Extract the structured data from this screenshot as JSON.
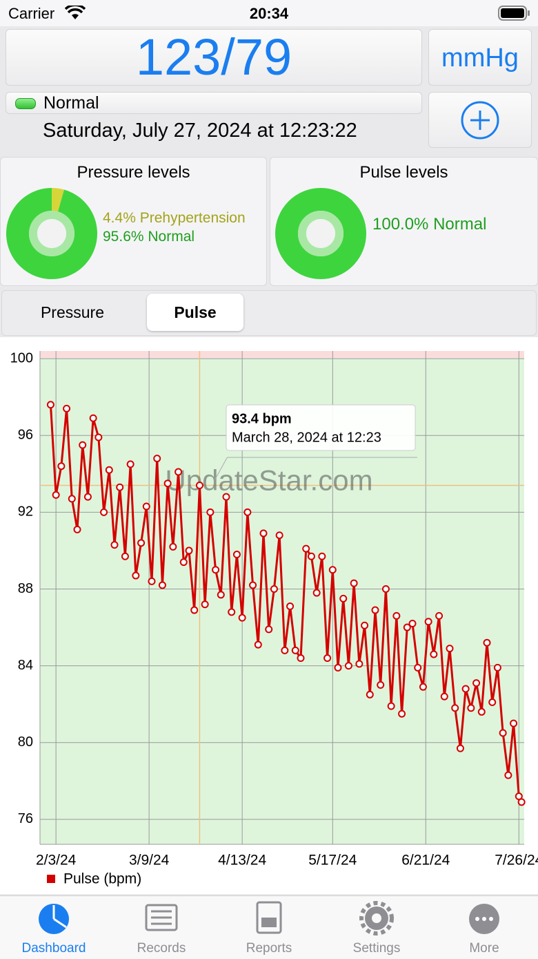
{
  "status_bar": {
    "carrier": "Carrier",
    "time": "20:34"
  },
  "reading": {
    "value": "123/79",
    "unit": "mmHg",
    "category": "Normal",
    "date": "Saturday, July 27, 2024 at 12:23:22"
  },
  "pressure_levels": {
    "type": "pie",
    "title": "Pressure levels",
    "categories": [
      "Prehypertension",
      "Normal"
    ],
    "values": [
      4.4,
      95.6
    ],
    "value_labels": [
      "4.4%",
      "95.6%"
    ],
    "colors": [
      "#d6d63a",
      "#3ed43e"
    ],
    "label_colors": [
      "#a3a31c",
      "#1f9e1f"
    ]
  },
  "pulse_levels": {
    "type": "pie",
    "title": "Pulse levels",
    "categories": [
      "Normal"
    ],
    "values": [
      100
    ],
    "value_labels": [
      "100.0%"
    ],
    "colors": [
      "#3ed43e"
    ],
    "label_colors": [
      "#1f9e1f"
    ]
  },
  "segments": [
    "Pressure",
    "Pulse"
  ],
  "selected_segment": 1,
  "watermark": "UpdateStar.com",
  "chart_data": {
    "type": "line",
    "x": [
      "2024-02-01",
      "2024-02-03",
      "2024-02-05",
      "2024-02-07",
      "2024-02-09",
      "2024-02-11",
      "2024-02-13",
      "2024-02-15",
      "2024-02-17",
      "2024-02-19",
      "2024-02-21",
      "2024-02-23",
      "2024-02-25",
      "2024-02-27",
      "2024-02-29",
      "2024-03-02",
      "2024-03-04",
      "2024-03-06",
      "2024-03-08",
      "2024-03-10",
      "2024-03-12",
      "2024-03-14",
      "2024-03-16",
      "2024-03-18",
      "2024-03-20",
      "2024-03-22",
      "2024-03-24",
      "2024-03-26",
      "2024-03-28",
      "2024-03-30",
      "2024-04-01",
      "2024-04-03",
      "2024-04-05",
      "2024-04-07",
      "2024-04-09",
      "2024-04-11",
      "2024-04-13",
      "2024-04-15",
      "2024-04-17",
      "2024-04-19",
      "2024-04-21",
      "2024-04-23",
      "2024-04-25",
      "2024-04-27",
      "2024-04-29",
      "2024-05-01",
      "2024-05-03",
      "2024-05-05",
      "2024-05-07",
      "2024-05-09",
      "2024-05-11",
      "2024-05-13",
      "2024-05-15",
      "2024-05-17",
      "2024-05-19",
      "2024-05-21",
      "2024-05-23",
      "2024-05-25",
      "2024-05-27",
      "2024-05-29",
      "2024-05-31",
      "2024-06-02",
      "2024-06-04",
      "2024-06-06",
      "2024-06-08",
      "2024-06-10",
      "2024-06-12",
      "2024-06-14",
      "2024-06-16",
      "2024-06-18",
      "2024-06-20",
      "2024-06-22",
      "2024-06-24",
      "2024-06-26",
      "2024-06-28",
      "2024-06-30",
      "2024-07-02",
      "2024-07-04",
      "2024-07-06",
      "2024-07-08",
      "2024-07-10",
      "2024-07-12",
      "2024-07-14",
      "2024-07-16",
      "2024-07-18",
      "2024-07-20",
      "2024-07-22",
      "2024-07-24",
      "2024-07-26",
      "2024-07-27"
    ],
    "series": [
      {
        "name": "Pulse (bpm)",
        "color": "#d40000",
        "values": [
          97.6,
          92.9,
          94.4,
          97.4,
          92.7,
          91.1,
          95.5,
          92.8,
          96.9,
          95.9,
          92.0,
          94.2,
          90.3,
          93.3,
          89.7,
          94.5,
          88.7,
          90.4,
          92.3,
          88.4,
          94.8,
          88.2,
          93.5,
          90.2,
          94.1,
          89.4,
          90.0,
          86.9,
          93.4,
          87.2,
          92.0,
          89.0,
          87.7,
          92.8,
          86.8,
          89.8,
          86.5,
          92.0,
          88.2,
          85.1,
          90.9,
          85.9,
          88.0,
          90.8,
          84.8,
          87.1,
          84.8,
          84.4,
          90.1,
          89.7,
          87.8,
          89.7,
          84.4,
          89.0,
          83.9,
          87.5,
          84.0,
          88.3,
          84.1,
          86.1,
          82.5,
          86.9,
          83.0,
          88.0,
          81.9,
          86.6,
          81.5,
          86.0,
          86.2,
          83.9,
          82.9,
          86.3,
          84.6,
          86.6,
          82.4,
          84.9,
          81.8,
          79.7,
          82.8,
          81.8,
          83.1,
          81.6,
          85.2,
          82.1,
          83.9,
          80.5,
          78.3,
          81.0,
          77.2,
          76.9
        ]
      }
    ],
    "xlim": [
      "2024-01-28",
      "2024-07-28"
    ],
    "xticks": [
      {
        "value": "2024-02-03",
        "label": "2/3/24"
      },
      {
        "value": "2024-03-09",
        "label": "3/9/24"
      },
      {
        "value": "2024-04-13",
        "label": "4/13/24"
      },
      {
        "value": "2024-05-17",
        "label": "5/17/24"
      },
      {
        "value": "2024-06-21",
        "label": "6/21/24"
      },
      {
        "value": "2024-07-26",
        "label": "7/26/24"
      }
    ],
    "ylim": [
      74.7,
      100.4
    ],
    "yticks": [
      76,
      80,
      84,
      88,
      92,
      96,
      100
    ],
    "grid": true,
    "tooltip": {
      "x": "2024-03-28",
      "value": 93.4,
      "label": "93.4 bpm",
      "date": "March 28, 2024 at 12:23"
    }
  },
  "tabs": [
    "Dashboard",
    "Records",
    "Reports",
    "Settings",
    "More"
  ],
  "selected_tab": 0
}
